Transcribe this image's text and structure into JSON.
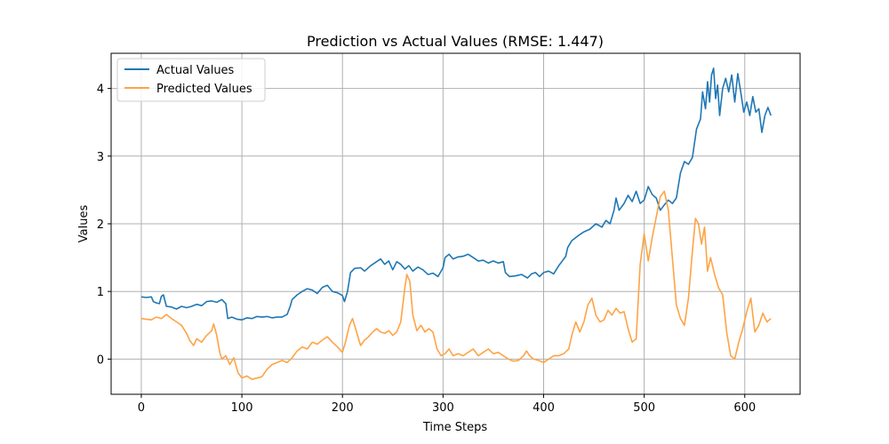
{
  "chart_data": {
    "type": "line",
    "title": "Prediction vs Actual Values (RMSE: 1.447)",
    "xlabel": "Time Steps",
    "ylabel": "Values",
    "xlim": [
      -30,
      655
    ],
    "ylim": [
      -0.52,
      4.52
    ],
    "xticks": [
      0,
      100,
      200,
      300,
      400,
      500,
      600
    ],
    "yticks": [
      0,
      1,
      2,
      3,
      4
    ],
    "grid": true,
    "legend_position": "upper-left",
    "series": [
      {
        "name": "Actual Values",
        "color": "#1f77b4",
        "points": [
          [
            0,
            0.92
          ],
          [
            5,
            0.91
          ],
          [
            10,
            0.92
          ],
          [
            12,
            0.85
          ],
          [
            15,
            0.83
          ],
          [
            18,
            0.82
          ],
          [
            20,
            0.93
          ],
          [
            22,
            0.95
          ],
          [
            25,
            0.78
          ],
          [
            30,
            0.77
          ],
          [
            35,
            0.74
          ],
          [
            40,
            0.78
          ],
          [
            45,
            0.76
          ],
          [
            50,
            0.78
          ],
          [
            55,
            0.81
          ],
          [
            60,
            0.79
          ],
          [
            65,
            0.85
          ],
          [
            70,
            0.86
          ],
          [
            75,
            0.84
          ],
          [
            80,
            0.88
          ],
          [
            84,
            0.82
          ],
          [
            86,
            0.6
          ],
          [
            90,
            0.62
          ],
          [
            95,
            0.59
          ],
          [
            100,
            0.58
          ],
          [
            105,
            0.61
          ],
          [
            110,
            0.6
          ],
          [
            115,
            0.63
          ],
          [
            120,
            0.62
          ],
          [
            125,
            0.63
          ],
          [
            130,
            0.61
          ],
          [
            135,
            0.62
          ],
          [
            140,
            0.62
          ],
          [
            145,
            0.66
          ],
          [
            148,
            0.78
          ],
          [
            150,
            0.88
          ],
          [
            155,
            0.95
          ],
          [
            160,
            1.0
          ],
          [
            165,
            1.04
          ],
          [
            170,
            1.02
          ],
          [
            175,
            0.97
          ],
          [
            180,
            1.06
          ],
          [
            185,
            1.09
          ],
          [
            190,
            1.0
          ],
          [
            195,
            0.98
          ],
          [
            200,
            0.94
          ],
          [
            202,
            0.85
          ],
          [
            205,
            1.0
          ],
          [
            208,
            1.28
          ],
          [
            212,
            1.34
          ],
          [
            218,
            1.35
          ],
          [
            222,
            1.3
          ],
          [
            228,
            1.38
          ],
          [
            232,
            1.42
          ],
          [
            238,
            1.48
          ],
          [
            242,
            1.4
          ],
          [
            246,
            1.45
          ],
          [
            250,
            1.32
          ],
          [
            254,
            1.44
          ],
          [
            258,
            1.4
          ],
          [
            262,
            1.33
          ],
          [
            266,
            1.38
          ],
          [
            270,
            1.3
          ],
          [
            275,
            1.36
          ],
          [
            280,
            1.32
          ],
          [
            285,
            1.25
          ],
          [
            290,
            1.27
          ],
          [
            295,
            1.22
          ],
          [
            300,
            1.35
          ],
          [
            302,
            1.5
          ],
          [
            306,
            1.55
          ],
          [
            310,
            1.48
          ],
          [
            315,
            1.51
          ],
          [
            320,
            1.52
          ],
          [
            325,
            1.55
          ],
          [
            330,
            1.5
          ],
          [
            335,
            1.45
          ],
          [
            340,
            1.46
          ],
          [
            345,
            1.42
          ],
          [
            350,
            1.45
          ],
          [
            355,
            1.42
          ],
          [
            360,
            1.44
          ],
          [
            362,
            1.28
          ],
          [
            366,
            1.22
          ],
          [
            372,
            1.23
          ],
          [
            378,
            1.25
          ],
          [
            384,
            1.2
          ],
          [
            388,
            1.26
          ],
          [
            392,
            1.28
          ],
          [
            396,
            1.22
          ],
          [
            400,
            1.28
          ],
          [
            405,
            1.3
          ],
          [
            410,
            1.26
          ],
          [
            415,
            1.38
          ],
          [
            418,
            1.44
          ],
          [
            422,
            1.52
          ],
          [
            424,
            1.65
          ],
          [
            428,
            1.75
          ],
          [
            434,
            1.82
          ],
          [
            440,
            1.88
          ],
          [
            446,
            1.92
          ],
          [
            452,
            2.0
          ],
          [
            458,
            1.95
          ],
          [
            462,
            2.05
          ],
          [
            466,
            2.0
          ],
          [
            470,
            2.2
          ],
          [
            472,
            2.38
          ],
          [
            475,
            2.2
          ],
          [
            480,
            2.3
          ],
          [
            484,
            2.42
          ],
          [
            488,
            2.33
          ],
          [
            492,
            2.48
          ],
          [
            496,
            2.3
          ],
          [
            500,
            2.35
          ],
          [
            504,
            2.55
          ],
          [
            508,
            2.43
          ],
          [
            512,
            2.38
          ],
          [
            516,
            2.2
          ],
          [
            520,
            2.28
          ],
          [
            524,
            2.35
          ],
          [
            528,
            2.3
          ],
          [
            532,
            2.38
          ],
          [
            536,
            2.75
          ],
          [
            540,
            2.92
          ],
          [
            544,
            2.88
          ],
          [
            548,
            2.98
          ],
          [
            552,
            3.4
          ],
          [
            556,
            3.55
          ],
          [
            558,
            3.95
          ],
          [
            561,
            3.7
          ],
          [
            563,
            4.1
          ],
          [
            565,
            3.8
          ],
          [
            567,
            4.2
          ],
          [
            569,
            4.3
          ],
          [
            571,
            3.85
          ],
          [
            573,
            4.05
          ],
          [
            575,
            3.6
          ],
          [
            578,
            4.0
          ],
          [
            581,
            4.15
          ],
          [
            584,
            3.95
          ],
          [
            587,
            4.2
          ],
          [
            590,
            3.8
          ],
          [
            593,
            4.22
          ],
          [
            596,
            3.95
          ],
          [
            599,
            3.65
          ],
          [
            602,
            3.8
          ],
          [
            605,
            3.6
          ],
          [
            608,
            3.88
          ],
          [
            611,
            3.65
          ],
          [
            614,
            3.7
          ],
          [
            617,
            3.35
          ],
          [
            620,
            3.6
          ],
          [
            623,
            3.72
          ],
          [
            626,
            3.6
          ]
        ]
      },
      {
        "name": "Predicted Values",
        "color": "#ffa345",
        "points": [
          [
            0,
            0.6
          ],
          [
            5,
            0.59
          ],
          [
            10,
            0.58
          ],
          [
            15,
            0.62
          ],
          [
            20,
            0.6
          ],
          [
            25,
            0.66
          ],
          [
            30,
            0.6
          ],
          [
            35,
            0.55
          ],
          [
            40,
            0.5
          ],
          [
            45,
            0.38
          ],
          [
            48,
            0.28
          ],
          [
            52,
            0.2
          ],
          [
            55,
            0.3
          ],
          [
            60,
            0.25
          ],
          [
            65,
            0.35
          ],
          [
            70,
            0.42
          ],
          [
            72,
            0.52
          ],
          [
            75,
            0.35
          ],
          [
            78,
            0.1
          ],
          [
            80,
            0.0
          ],
          [
            84,
            0.05
          ],
          [
            88,
            -0.08
          ],
          [
            92,
            0.02
          ],
          [
            96,
            -0.2
          ],
          [
            100,
            -0.28
          ],
          [
            105,
            -0.25
          ],
          [
            110,
            -0.3
          ],
          [
            115,
            -0.28
          ],
          [
            120,
            -0.26
          ],
          [
            125,
            -0.15
          ],
          [
            130,
            -0.08
          ],
          [
            135,
            -0.05
          ],
          [
            140,
            -0.02
          ],
          [
            145,
            -0.05
          ],
          [
            150,
            0.02
          ],
          [
            155,
            0.12
          ],
          [
            160,
            0.18
          ],
          [
            165,
            0.15
          ],
          [
            170,
            0.25
          ],
          [
            175,
            0.22
          ],
          [
            180,
            0.28
          ],
          [
            185,
            0.33
          ],
          [
            190,
            0.25
          ],
          [
            195,
            0.18
          ],
          [
            200,
            0.1
          ],
          [
            203,
            0.25
          ],
          [
            207,
            0.5
          ],
          [
            210,
            0.6
          ],
          [
            214,
            0.4
          ],
          [
            218,
            0.2
          ],
          [
            222,
            0.28
          ],
          [
            226,
            0.33
          ],
          [
            230,
            0.4
          ],
          [
            234,
            0.45
          ],
          [
            238,
            0.4
          ],
          [
            242,
            0.38
          ],
          [
            246,
            0.42
          ],
          [
            250,
            0.35
          ],
          [
            254,
            0.4
          ],
          [
            258,
            0.55
          ],
          [
            262,
            1.05
          ],
          [
            264,
            1.25
          ],
          [
            267,
            1.15
          ],
          [
            270,
            0.65
          ],
          [
            274,
            0.42
          ],
          [
            278,
            0.5
          ],
          [
            282,
            0.4
          ],
          [
            286,
            0.45
          ],
          [
            290,
            0.4
          ],
          [
            294,
            0.15
          ],
          [
            298,
            0.05
          ],
          [
            302,
            0.08
          ],
          [
            306,
            0.15
          ],
          [
            310,
            0.05
          ],
          [
            315,
            0.08
          ],
          [
            320,
            0.05
          ],
          [
            325,
            0.1
          ],
          [
            330,
            0.15
          ],
          [
            335,
            0.05
          ],
          [
            340,
            0.1
          ],
          [
            345,
            0.15
          ],
          [
            350,
            0.08
          ],
          [
            355,
            0.1
          ],
          [
            360,
            0.05
          ],
          [
            365,
            0.0
          ],
          [
            370,
            -0.03
          ],
          [
            375,
            -0.02
          ],
          [
            380,
            0.05
          ],
          [
            383,
            0.12
          ],
          [
            386,
            0.05
          ],
          [
            390,
            0.0
          ],
          [
            395,
            -0.02
          ],
          [
            400,
            -0.05
          ],
          [
            405,
            0.0
          ],
          [
            410,
            0.05
          ],
          [
            415,
            0.05
          ],
          [
            420,
            0.08
          ],
          [
            425,
            0.15
          ],
          [
            428,
            0.35
          ],
          [
            432,
            0.55
          ],
          [
            436,
            0.4
          ],
          [
            440,
            0.55
          ],
          [
            444,
            0.8
          ],
          [
            448,
            0.9
          ],
          [
            452,
            0.65
          ],
          [
            456,
            0.55
          ],
          [
            460,
            0.58
          ],
          [
            464,
            0.72
          ],
          [
            468,
            0.65
          ],
          [
            472,
            0.75
          ],
          [
            476,
            0.68
          ],
          [
            480,
            0.7
          ],
          [
            484,
            0.45
          ],
          [
            488,
            0.25
          ],
          [
            492,
            0.3
          ],
          [
            496,
            1.4
          ],
          [
            500,
            1.85
          ],
          [
            504,
            1.45
          ],
          [
            508,
            1.8
          ],
          [
            512,
            2.1
          ],
          [
            516,
            2.4
          ],
          [
            520,
            2.48
          ],
          [
            524,
            2.2
          ],
          [
            528,
            1.5
          ],
          [
            532,
            0.8
          ],
          [
            536,
            0.6
          ],
          [
            540,
            0.5
          ],
          [
            544,
            0.9
          ],
          [
            548,
            1.6
          ],
          [
            551,
            2.08
          ],
          [
            554,
            2.0
          ],
          [
            557,
            1.7
          ],
          [
            560,
            1.95
          ],
          [
            563,
            1.3
          ],
          [
            566,
            1.5
          ],
          [
            570,
            1.25
          ],
          [
            574,
            1.05
          ],
          [
            578,
            0.95
          ],
          [
            582,
            0.4
          ],
          [
            586,
            0.05
          ],
          [
            590,
            0.0
          ],
          [
            594,
            0.25
          ],
          [
            598,
            0.45
          ],
          [
            602,
            0.7
          ],
          [
            606,
            0.9
          ],
          [
            610,
            0.4
          ],
          [
            614,
            0.5
          ],
          [
            618,
            0.68
          ],
          [
            622,
            0.55
          ],
          [
            626,
            0.6
          ]
        ]
      }
    ]
  }
}
